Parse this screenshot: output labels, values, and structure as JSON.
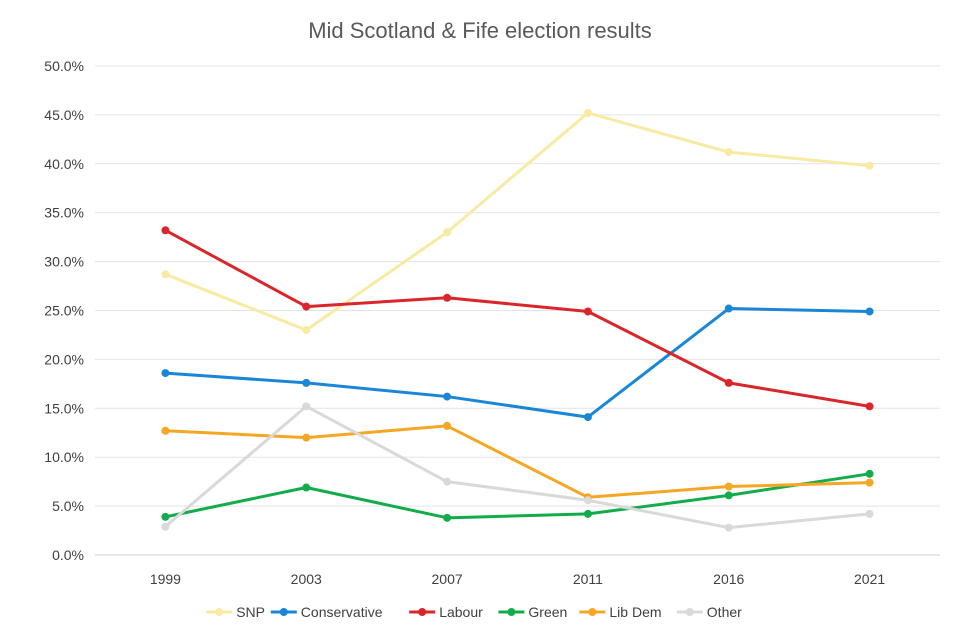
{
  "chart_data": {
    "type": "line",
    "title": "Mid Scotland & Fife election results",
    "xlabel": "",
    "ylabel": "",
    "categories": [
      "1999",
      "2003",
      "2007",
      "2011",
      "2016",
      "2021"
    ],
    "ylim": [
      0,
      50
    ],
    "yticks": [
      "0.0%",
      "5.0%",
      "10.0%",
      "15.0%",
      "20.0%",
      "25.0%",
      "30.0%",
      "35.0%",
      "40.0%",
      "45.0%",
      "50.0%"
    ],
    "grid": true,
    "legend_position": "bottom",
    "series": [
      {
        "name": "SNP",
        "color": "#f9eaa3",
        "values": [
          28.7,
          23.0,
          33.0,
          45.2,
          41.2,
          39.8
        ]
      },
      {
        "name": "Conservative",
        "color": "#1a86d8",
        "values": [
          18.6,
          17.6,
          16.2,
          14.1,
          25.2,
          24.9
        ]
      },
      {
        "name": "Labour",
        "color": "#d9262a",
        "values": [
          33.2,
          25.4,
          26.3,
          24.9,
          17.6,
          15.2
        ]
      },
      {
        "name": "Green",
        "color": "#13ac4b",
        "values": [
          3.9,
          6.9,
          3.8,
          4.2,
          6.1,
          8.3
        ]
      },
      {
        "name": "Lib Dem",
        "color": "#f5a623",
        "values": [
          12.7,
          12.0,
          13.2,
          5.9,
          7.0,
          7.4
        ]
      },
      {
        "name": "Other",
        "color": "#d9d9d9",
        "values": [
          2.9,
          15.2,
          7.5,
          5.6,
          2.8,
          4.2
        ]
      }
    ]
  }
}
